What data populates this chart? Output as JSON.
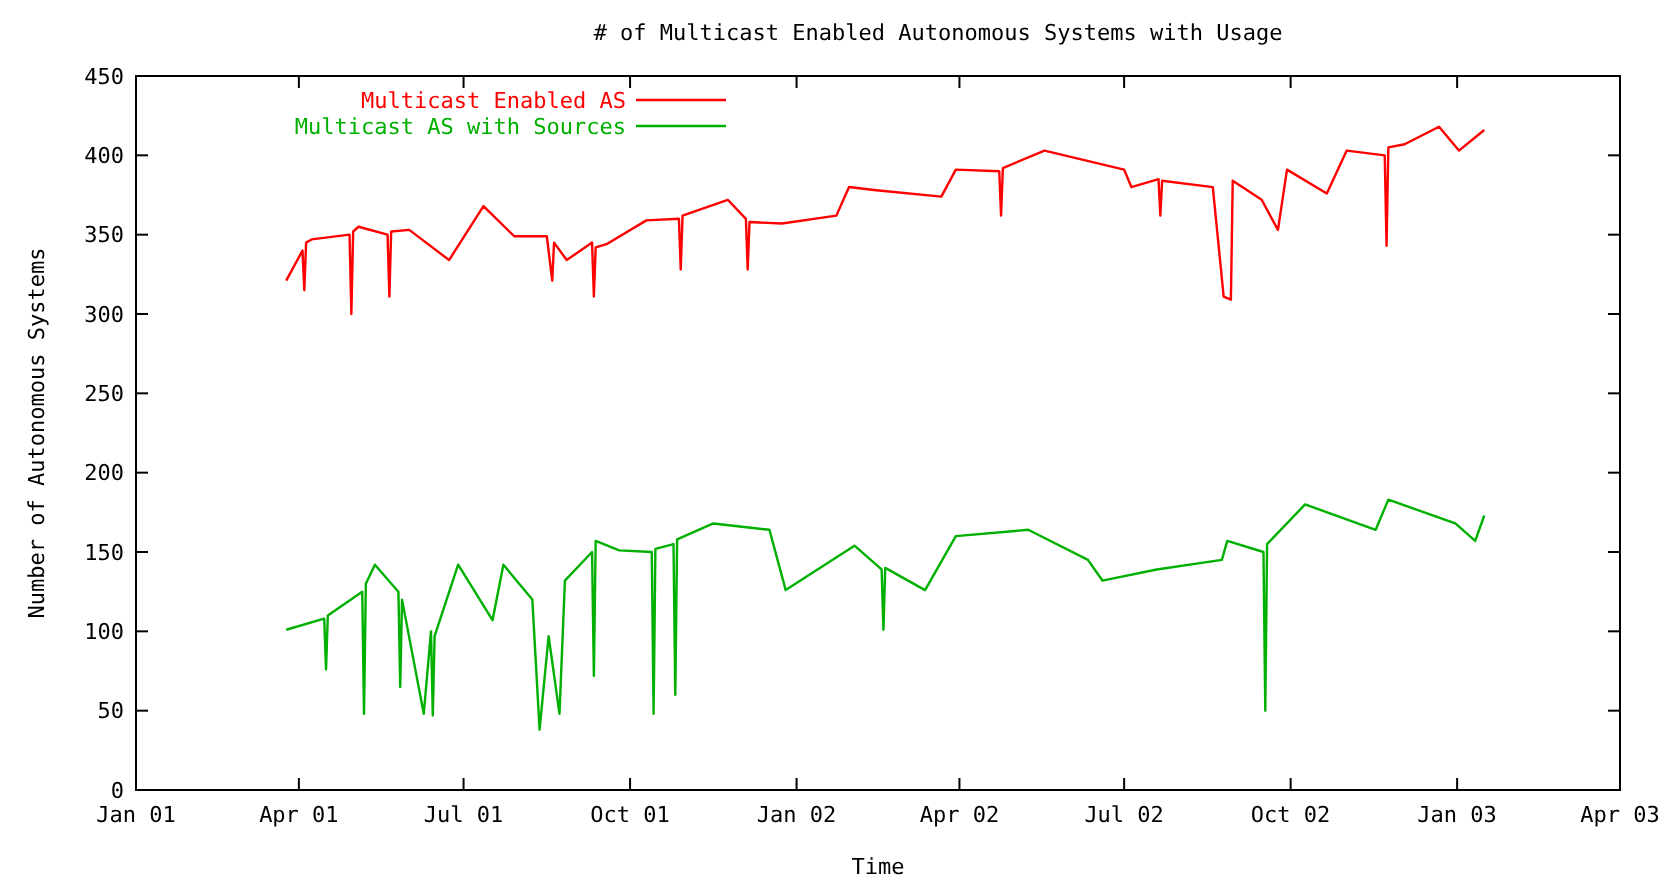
{
  "chart_data": {
    "type": "line",
    "title": "# of Multicast Enabled Autonomous Systems with Usage",
    "xlabel": "Time",
    "ylabel": "Number of Autonomous Systems",
    "xlim": [
      "2001-01-01",
      "2003-04-01"
    ],
    "ylim": [
      0,
      450
    ],
    "yticks": [
      0,
      50,
      100,
      150,
      200,
      250,
      300,
      350,
      400,
      450
    ],
    "xticks": [
      {
        "value": "2001-01-01",
        "label": "Jan 01"
      },
      {
        "value": "2001-04-01",
        "label": "Apr 01"
      },
      {
        "value": "2001-07-01",
        "label": "Jul 01"
      },
      {
        "value": "2001-10-01",
        "label": "Oct 01"
      },
      {
        "value": "2002-01-01",
        "label": "Jan 02"
      },
      {
        "value": "2002-04-01",
        "label": "Apr 02"
      },
      {
        "value": "2002-07-01",
        "label": "Jul 02"
      },
      {
        "value": "2002-10-01",
        "label": "Oct 02"
      },
      {
        "value": "2003-01-01",
        "label": "Jan 03"
      },
      {
        "value": "2003-04-01",
        "label": "Apr 03"
      }
    ],
    "grid": false,
    "legend": "top left",
    "marker": "none",
    "line_style": "solid",
    "series": [
      {
        "name": "Multicast Enabled AS",
        "color": "#ff0000",
        "x": [
          "2001-03-25",
          "2001-04-03",
          "2001-04-04",
          "2001-04-05",
          "2001-04-08",
          "2001-04-29",
          "2001-04-30",
          "2001-05-01",
          "2001-05-04",
          "2001-05-20",
          "2001-05-21",
          "2001-05-22",
          "2001-06-01",
          "2001-06-23",
          "2001-07-12",
          "2001-07-29",
          "2001-08-16",
          "2001-08-19",
          "2001-08-20",
          "2001-08-27",
          "2001-09-10",
          "2001-09-11",
          "2001-09-12",
          "2001-09-18",
          "2001-10-10",
          "2001-10-28",
          "2001-10-29",
          "2001-10-30",
          "2001-11-24",
          "2001-12-04",
          "2001-12-05",
          "2001-12-06",
          "2001-12-24",
          "2002-01-23",
          "2002-01-30",
          "2002-02-14",
          "2002-03-22",
          "2002-03-30",
          "2002-04-23",
          "2002-04-24",
          "2002-04-25",
          "2002-05-18",
          "2002-07-01",
          "2002-07-05",
          "2002-07-20",
          "2002-07-21",
          "2002-07-22",
          "2002-08-19",
          "2002-08-25",
          "2002-08-29",
          "2002-08-30",
          "2002-09-15",
          "2002-09-24",
          "2002-09-29",
          "2002-10-21",
          "2002-11-01",
          "2002-11-22",
          "2002-11-23",
          "2002-11-24",
          "2002-12-03",
          "2002-12-22",
          "2003-01-02",
          "2003-01-16"
        ],
        "values": [
          321,
          340,
          315,
          345,
          347,
          350,
          300,
          352,
          355,
          350,
          311,
          352,
          353,
          334,
          368,
          349,
          349,
          321,
          345,
          334,
          345,
          311,
          342,
          344,
          359,
          360,
          328,
          362,
          372,
          360,
          328,
          358,
          357,
          362,
          380,
          378,
          374,
          391,
          390,
          362,
          392,
          403,
          391,
          380,
          385,
          362,
          384,
          380,
          311,
          309,
          384,
          372,
          353,
          391,
          376,
          403,
          400,
          343,
          405,
          407,
          418,
          403,
          416
        ]
      },
      {
        "name": "Multicast AS with Sources",
        "color": "#00b000",
        "x": [
          "2001-03-25",
          "2001-04-15",
          "2001-04-16",
          "2001-04-17",
          "2001-05-06",
          "2001-05-07",
          "2001-05-08",
          "2001-05-13",
          "2001-05-26",
          "2001-05-27",
          "2001-05-28",
          "2001-06-09",
          "2001-06-13",
          "2001-06-14",
          "2001-06-15",
          "2001-06-28",
          "2001-07-17",
          "2001-07-23",
          "2001-08-08",
          "2001-08-12",
          "2001-08-17",
          "2001-08-23",
          "2001-08-26",
          "2001-09-10",
          "2001-09-11",
          "2001-09-12",
          "2001-09-25",
          "2001-10-13",
          "2001-10-14",
          "2001-10-15",
          "2001-10-25",
          "2001-10-26",
          "2001-10-27",
          "2001-11-16",
          "2001-12-17",
          "2001-12-26",
          "2002-02-02",
          "2002-02-17",
          "2002-02-18",
          "2002-02-19",
          "2002-03-13",
          "2002-03-30",
          "2002-05-09",
          "2002-06-11",
          "2002-06-19",
          "2002-07-19",
          "2002-08-24",
          "2002-08-27",
          "2002-09-16",
          "2002-09-17",
          "2002-09-18",
          "2002-10-09",
          "2002-11-17",
          "2002-11-24",
          "2002-12-31",
          "2003-01-11",
          "2003-01-16"
        ],
        "values": [
          101,
          108,
          76,
          110,
          125,
          48,
          130,
          142,
          125,
          65,
          120,
          48,
          100,
          47,
          97,
          142,
          107,
          142,
          120,
          38,
          97,
          48,
          132,
          150,
          72,
          157,
          151,
          150,
          48,
          152,
          155,
          60,
          158,
          168,
          164,
          126,
          154,
          139,
          101,
          140,
          126,
          160,
          164,
          145,
          132,
          139,
          145,
          157,
          150,
          50,
          155,
          180,
          164,
          183,
          168,
          157,
          173
        ]
      }
    ]
  }
}
